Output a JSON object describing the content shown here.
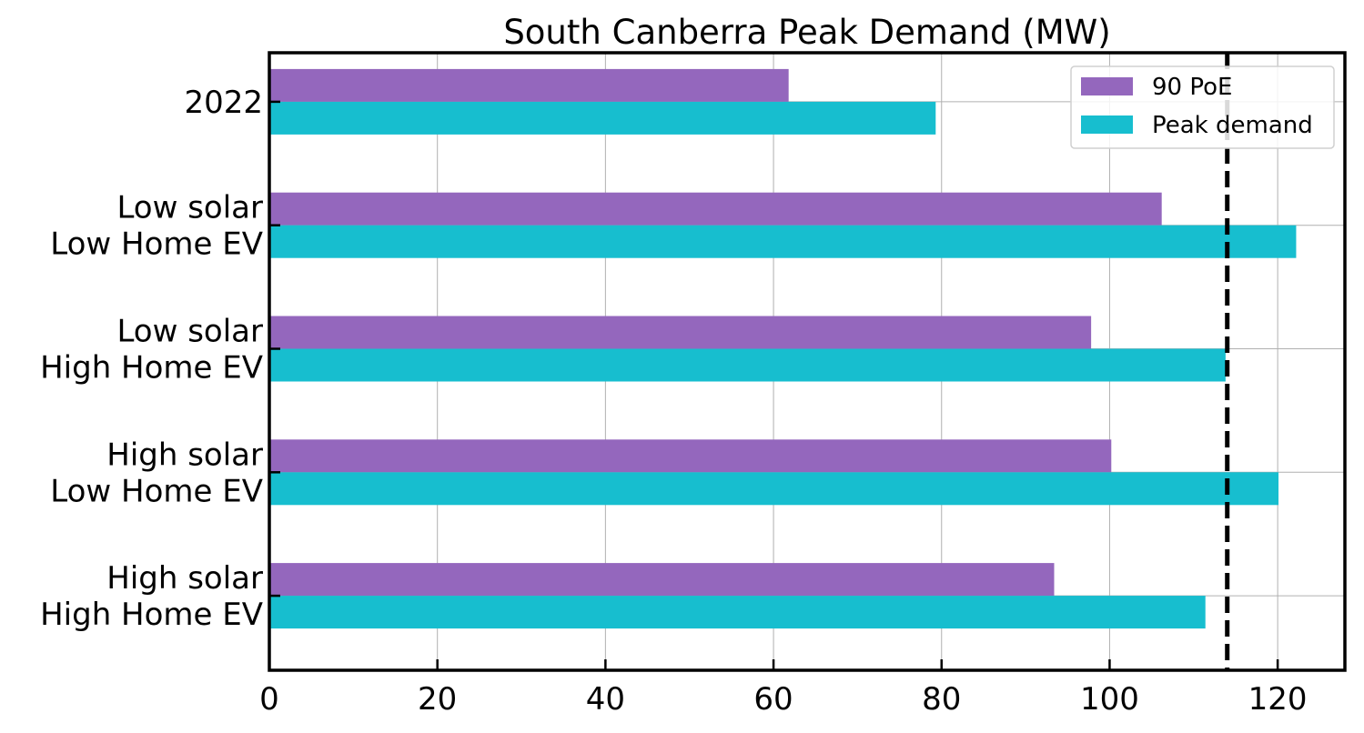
{
  "chart_data": {
    "type": "bar",
    "orientation": "horizontal",
    "title": "South Canberra Peak Demand (MW)",
    "xlabel": "",
    "ylabel": "",
    "xlim": [
      0,
      128
    ],
    "x_ticks": [
      0,
      20,
      40,
      60,
      80,
      100,
      120
    ],
    "categories": [
      [
        "2022"
      ],
      [
        "Low solar",
        "Low Home EV"
      ],
      [
        "Low solar",
        "High Home EV"
      ],
      [
        "High solar",
        "Low Home EV"
      ],
      [
        "High solar",
        "High Home EV"
      ]
    ],
    "series": [
      {
        "name": "90 PoE",
        "color": "#9467bd",
        "values": [
          61.8,
          106.2,
          97.8,
          100.2,
          93.4
        ]
      },
      {
        "name": "Peak demand",
        "color": "#17becf",
        "values": [
          79.3,
          122.2,
          113.8,
          120.1,
          111.4
        ]
      }
    ],
    "reference_line": {
      "value": 114,
      "style": "dashed",
      "color": "#000000"
    },
    "grid": true,
    "legend_position": "top-right"
  }
}
